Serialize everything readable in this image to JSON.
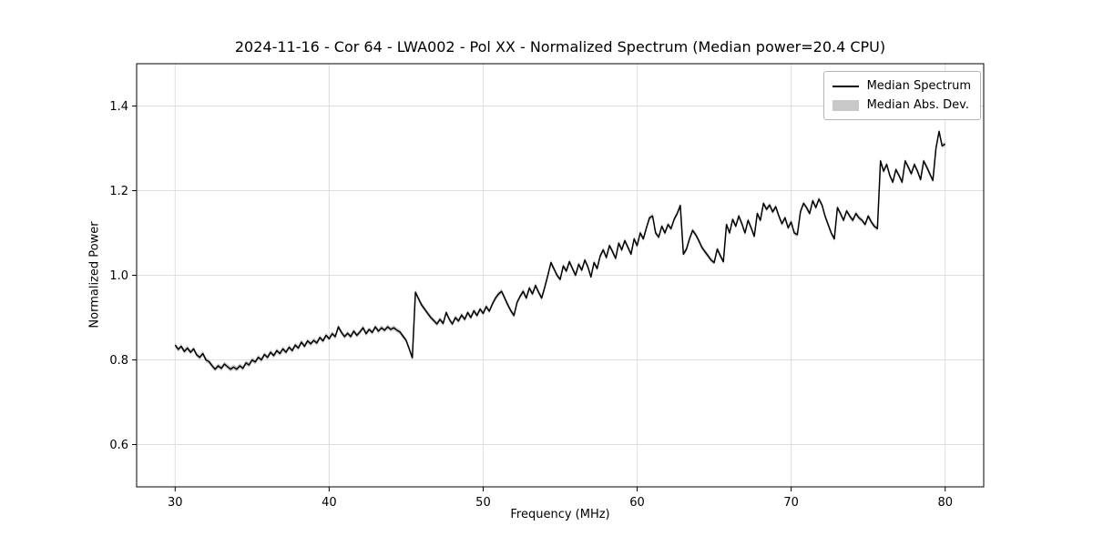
{
  "figure": {
    "title": "2024-11-16 - Cor 64 - LWA002 - Pol XX - Normalized Spectrum (Median power=20.4 CPU)",
    "xlabel": "Frequency (MHz)",
    "ylabel": "Normalized Power"
  },
  "legend": {
    "position": "upper right",
    "entries": [
      {
        "label": "Median Spectrum",
        "type": "line",
        "color": "#000000"
      },
      {
        "label": "Median Abs. Dev.",
        "type": "patch",
        "color": "#c8c8c8"
      }
    ]
  },
  "chart_data": {
    "type": "line",
    "title": "2024-11-16 - Cor 64 - LWA002 - Pol XX - Normalized Spectrum (Median power=20.4 CPU)",
    "xlabel": "Frequency (MHz)",
    "ylabel": "Normalized Power",
    "xlim": [
      27.5,
      82.5
    ],
    "ylim": [
      0.5,
      1.5
    ],
    "xticks": [
      30,
      40,
      50,
      60,
      70,
      80
    ],
    "yticks": [
      0.6,
      0.8,
      1.0,
      1.2,
      1.4
    ],
    "grid": true,
    "grid_color": "#dedede",
    "line_color": "#000000",
    "band_color": "#c8c8c8",
    "band_halfwidth": 0.006,
    "series": [
      {
        "name": "Median Spectrum",
        "points": [
          [
            30.0,
            0.835
          ],
          [
            30.2,
            0.825
          ],
          [
            30.4,
            0.832
          ],
          [
            30.6,
            0.82
          ],
          [
            30.8,
            0.828
          ],
          [
            31.0,
            0.818
          ],
          [
            31.2,
            0.826
          ],
          [
            31.4,
            0.812
          ],
          [
            31.6,
            0.806
          ],
          [
            31.8,
            0.815
          ],
          [
            32.0,
            0.8
          ],
          [
            32.2,
            0.796
          ],
          [
            32.4,
            0.786
          ],
          [
            32.6,
            0.778
          ],
          [
            32.8,
            0.786
          ],
          [
            33.0,
            0.78
          ],
          [
            33.2,
            0.79
          ],
          [
            33.4,
            0.784
          ],
          [
            33.6,
            0.778
          ],
          [
            33.8,
            0.783
          ],
          [
            34.0,
            0.778
          ],
          [
            34.2,
            0.786
          ],
          [
            34.4,
            0.78
          ],
          [
            34.6,
            0.793
          ],
          [
            34.8,
            0.788
          ],
          [
            35.0,
            0.8
          ],
          [
            35.2,
            0.795
          ],
          [
            35.4,
            0.806
          ],
          [
            35.6,
            0.8
          ],
          [
            35.8,
            0.813
          ],
          [
            36.0,
            0.806
          ],
          [
            36.2,
            0.818
          ],
          [
            36.4,
            0.81
          ],
          [
            36.6,
            0.822
          ],
          [
            36.8,
            0.815
          ],
          [
            37.0,
            0.826
          ],
          [
            37.2,
            0.818
          ],
          [
            37.4,
            0.83
          ],
          [
            37.6,
            0.822
          ],
          [
            37.8,
            0.835
          ],
          [
            38.0,
            0.828
          ],
          [
            38.2,
            0.842
          ],
          [
            38.4,
            0.832
          ],
          [
            38.6,
            0.845
          ],
          [
            38.8,
            0.838
          ],
          [
            39.0,
            0.846
          ],
          [
            39.2,
            0.84
          ],
          [
            39.4,
            0.853
          ],
          [
            39.6,
            0.845
          ],
          [
            39.8,
            0.858
          ],
          [
            40.0,
            0.85
          ],
          [
            40.2,
            0.862
          ],
          [
            40.4,
            0.855
          ],
          [
            40.6,
            0.878
          ],
          [
            40.8,
            0.865
          ],
          [
            41.0,
            0.855
          ],
          [
            41.2,
            0.863
          ],
          [
            41.4,
            0.855
          ],
          [
            41.6,
            0.868
          ],
          [
            41.8,
            0.858
          ],
          [
            42.0,
            0.866
          ],
          [
            42.2,
            0.876
          ],
          [
            42.4,
            0.862
          ],
          [
            42.6,
            0.872
          ],
          [
            42.8,
            0.865
          ],
          [
            43.0,
            0.878
          ],
          [
            43.2,
            0.868
          ],
          [
            43.4,
            0.876
          ],
          [
            43.6,
            0.87
          ],
          [
            43.8,
            0.878
          ],
          [
            44.0,
            0.872
          ],
          [
            44.2,
            0.876
          ],
          [
            44.4,
            0.87
          ],
          [
            44.6,
            0.866
          ],
          [
            44.8,
            0.856
          ],
          [
            45.0,
            0.846
          ],
          [
            45.2,
            0.826
          ],
          [
            45.4,
            0.805
          ],
          [
            45.6,
            0.96
          ],
          [
            45.8,
            0.945
          ],
          [
            46.0,
            0.93
          ],
          [
            46.2,
            0.92
          ],
          [
            46.4,
            0.91
          ],
          [
            46.6,
            0.9
          ],
          [
            46.8,
            0.893
          ],
          [
            47.0,
            0.885
          ],
          [
            47.2,
            0.896
          ],
          [
            47.4,
            0.886
          ],
          [
            47.6,
            0.912
          ],
          [
            47.8,
            0.896
          ],
          [
            48.0,
            0.885
          ],
          [
            48.2,
            0.9
          ],
          [
            48.4,
            0.892
          ],
          [
            48.6,
            0.906
          ],
          [
            48.8,
            0.896
          ],
          [
            49.0,
            0.912
          ],
          [
            49.2,
            0.9
          ],
          [
            49.4,
            0.916
          ],
          [
            49.6,
            0.905
          ],
          [
            49.8,
            0.92
          ],
          [
            50.0,
            0.91
          ],
          [
            50.2,
            0.926
          ],
          [
            50.4,
            0.915
          ],
          [
            50.6,
            0.932
          ],
          [
            50.8,
            0.946
          ],
          [
            51.0,
            0.956
          ],
          [
            51.2,
            0.962
          ],
          [
            51.4,
            0.946
          ],
          [
            51.6,
            0.93
          ],
          [
            51.8,
            0.916
          ],
          [
            52.0,
            0.905
          ],
          [
            52.2,
            0.936
          ],
          [
            52.4,
            0.95
          ],
          [
            52.6,
            0.962
          ],
          [
            52.8,
            0.946
          ],
          [
            53.0,
            0.97
          ],
          [
            53.2,
            0.956
          ],
          [
            53.4,
            0.976
          ],
          [
            53.6,
            0.96
          ],
          [
            53.8,
            0.946
          ],
          [
            54.0,
            0.972
          ],
          [
            54.2,
            1.0
          ],
          [
            54.4,
            1.03
          ],
          [
            54.6,
            1.015
          ],
          [
            54.8,
            1.0
          ],
          [
            55.0,
            0.99
          ],
          [
            55.2,
            1.022
          ],
          [
            55.4,
            1.01
          ],
          [
            55.6,
            1.032
          ],
          [
            55.8,
            1.016
          ],
          [
            56.0,
            1.0
          ],
          [
            56.2,
            1.026
          ],
          [
            56.4,
            1.012
          ],
          [
            56.6,
            1.036
          ],
          [
            56.8,
            1.02
          ],
          [
            57.0,
            0.996
          ],
          [
            57.2,
            1.03
          ],
          [
            57.4,
            1.016
          ],
          [
            57.6,
            1.046
          ],
          [
            57.8,
            1.06
          ],
          [
            58.0,
            1.042
          ],
          [
            58.2,
            1.07
          ],
          [
            58.4,
            1.056
          ],
          [
            58.6,
            1.04
          ],
          [
            58.8,
            1.076
          ],
          [
            59.0,
            1.06
          ],
          [
            59.2,
            1.082
          ],
          [
            59.4,
            1.066
          ],
          [
            59.6,
            1.05
          ],
          [
            59.8,
            1.086
          ],
          [
            60.0,
            1.07
          ],
          [
            60.2,
            1.1
          ],
          [
            60.4,
            1.086
          ],
          [
            60.6,
            1.112
          ],
          [
            60.8,
            1.136
          ],
          [
            61.0,
            1.14
          ],
          [
            61.2,
            1.1
          ],
          [
            61.4,
            1.09
          ],
          [
            61.6,
            1.116
          ],
          [
            61.8,
            1.1
          ],
          [
            62.0,
            1.12
          ],
          [
            62.2,
            1.11
          ],
          [
            62.4,
            1.132
          ],
          [
            62.6,
            1.146
          ],
          [
            62.8,
            1.165
          ],
          [
            63.0,
            1.05
          ],
          [
            63.2,
            1.062
          ],
          [
            63.4,
            1.086
          ],
          [
            63.6,
            1.106
          ],
          [
            63.8,
            1.096
          ],
          [
            64.0,
            1.082
          ],
          [
            64.2,
            1.066
          ],
          [
            64.4,
            1.056
          ],
          [
            64.6,
            1.046
          ],
          [
            64.8,
            1.036
          ],
          [
            65.0,
            1.03
          ],
          [
            65.2,
            1.062
          ],
          [
            65.4,
            1.046
          ],
          [
            65.6,
            1.032
          ],
          [
            65.8,
            1.12
          ],
          [
            66.0,
            1.1
          ],
          [
            66.2,
            1.132
          ],
          [
            66.4,
            1.116
          ],
          [
            66.6,
            1.14
          ],
          [
            66.8,
            1.122
          ],
          [
            67.0,
            1.1
          ],
          [
            67.2,
            1.13
          ],
          [
            67.4,
            1.112
          ],
          [
            67.6,
            1.092
          ],
          [
            67.8,
            1.146
          ],
          [
            68.0,
            1.13
          ],
          [
            68.2,
            1.17
          ],
          [
            68.4,
            1.156
          ],
          [
            68.6,
            1.166
          ],
          [
            68.8,
            1.15
          ],
          [
            69.0,
            1.162
          ],
          [
            69.2,
            1.14
          ],
          [
            69.4,
            1.122
          ],
          [
            69.6,
            1.136
          ],
          [
            69.8,
            1.112
          ],
          [
            70.0,
            1.126
          ],
          [
            70.2,
            1.1
          ],
          [
            70.4,
            1.096
          ],
          [
            70.6,
            1.15
          ],
          [
            70.8,
            1.17
          ],
          [
            71.0,
            1.16
          ],
          [
            71.2,
            1.146
          ],
          [
            71.4,
            1.176
          ],
          [
            71.6,
            1.16
          ],
          [
            71.8,
            1.18
          ],
          [
            72.0,
            1.166
          ],
          [
            72.2,
            1.14
          ],
          [
            72.4,
            1.12
          ],
          [
            72.6,
            1.1
          ],
          [
            72.8,
            1.086
          ],
          [
            73.0,
            1.16
          ],
          [
            73.2,
            1.146
          ],
          [
            73.4,
            1.13
          ],
          [
            73.6,
            1.152
          ],
          [
            73.8,
            1.14
          ],
          [
            74.0,
            1.13
          ],
          [
            74.2,
            1.146
          ],
          [
            74.4,
            1.136
          ],
          [
            74.6,
            1.13
          ],
          [
            74.8,
            1.12
          ],
          [
            75.0,
            1.14
          ],
          [
            75.2,
            1.126
          ],
          [
            75.4,
            1.116
          ],
          [
            75.6,
            1.11
          ],
          [
            75.8,
            1.27
          ],
          [
            76.0,
            1.246
          ],
          [
            76.2,
            1.262
          ],
          [
            76.4,
            1.236
          ],
          [
            76.6,
            1.22
          ],
          [
            76.8,
            1.25
          ],
          [
            77.0,
            1.236
          ],
          [
            77.2,
            1.22
          ],
          [
            77.4,
            1.27
          ],
          [
            77.6,
            1.256
          ],
          [
            77.8,
            1.24
          ],
          [
            78.0,
            1.262
          ],
          [
            78.2,
            1.246
          ],
          [
            78.4,
            1.226
          ],
          [
            78.6,
            1.27
          ],
          [
            78.8,
            1.256
          ],
          [
            79.0,
            1.24
          ],
          [
            79.2,
            1.224
          ],
          [
            79.4,
            1.3
          ],
          [
            79.6,
            1.34
          ],
          [
            79.8,
            1.306
          ],
          [
            80.0,
            1.31
          ]
        ]
      },
      {
        "name": "Median Abs. Dev.",
        "type": "band",
        "halfwidth": 0.006,
        "color": "#c8c8c8"
      }
    ]
  }
}
